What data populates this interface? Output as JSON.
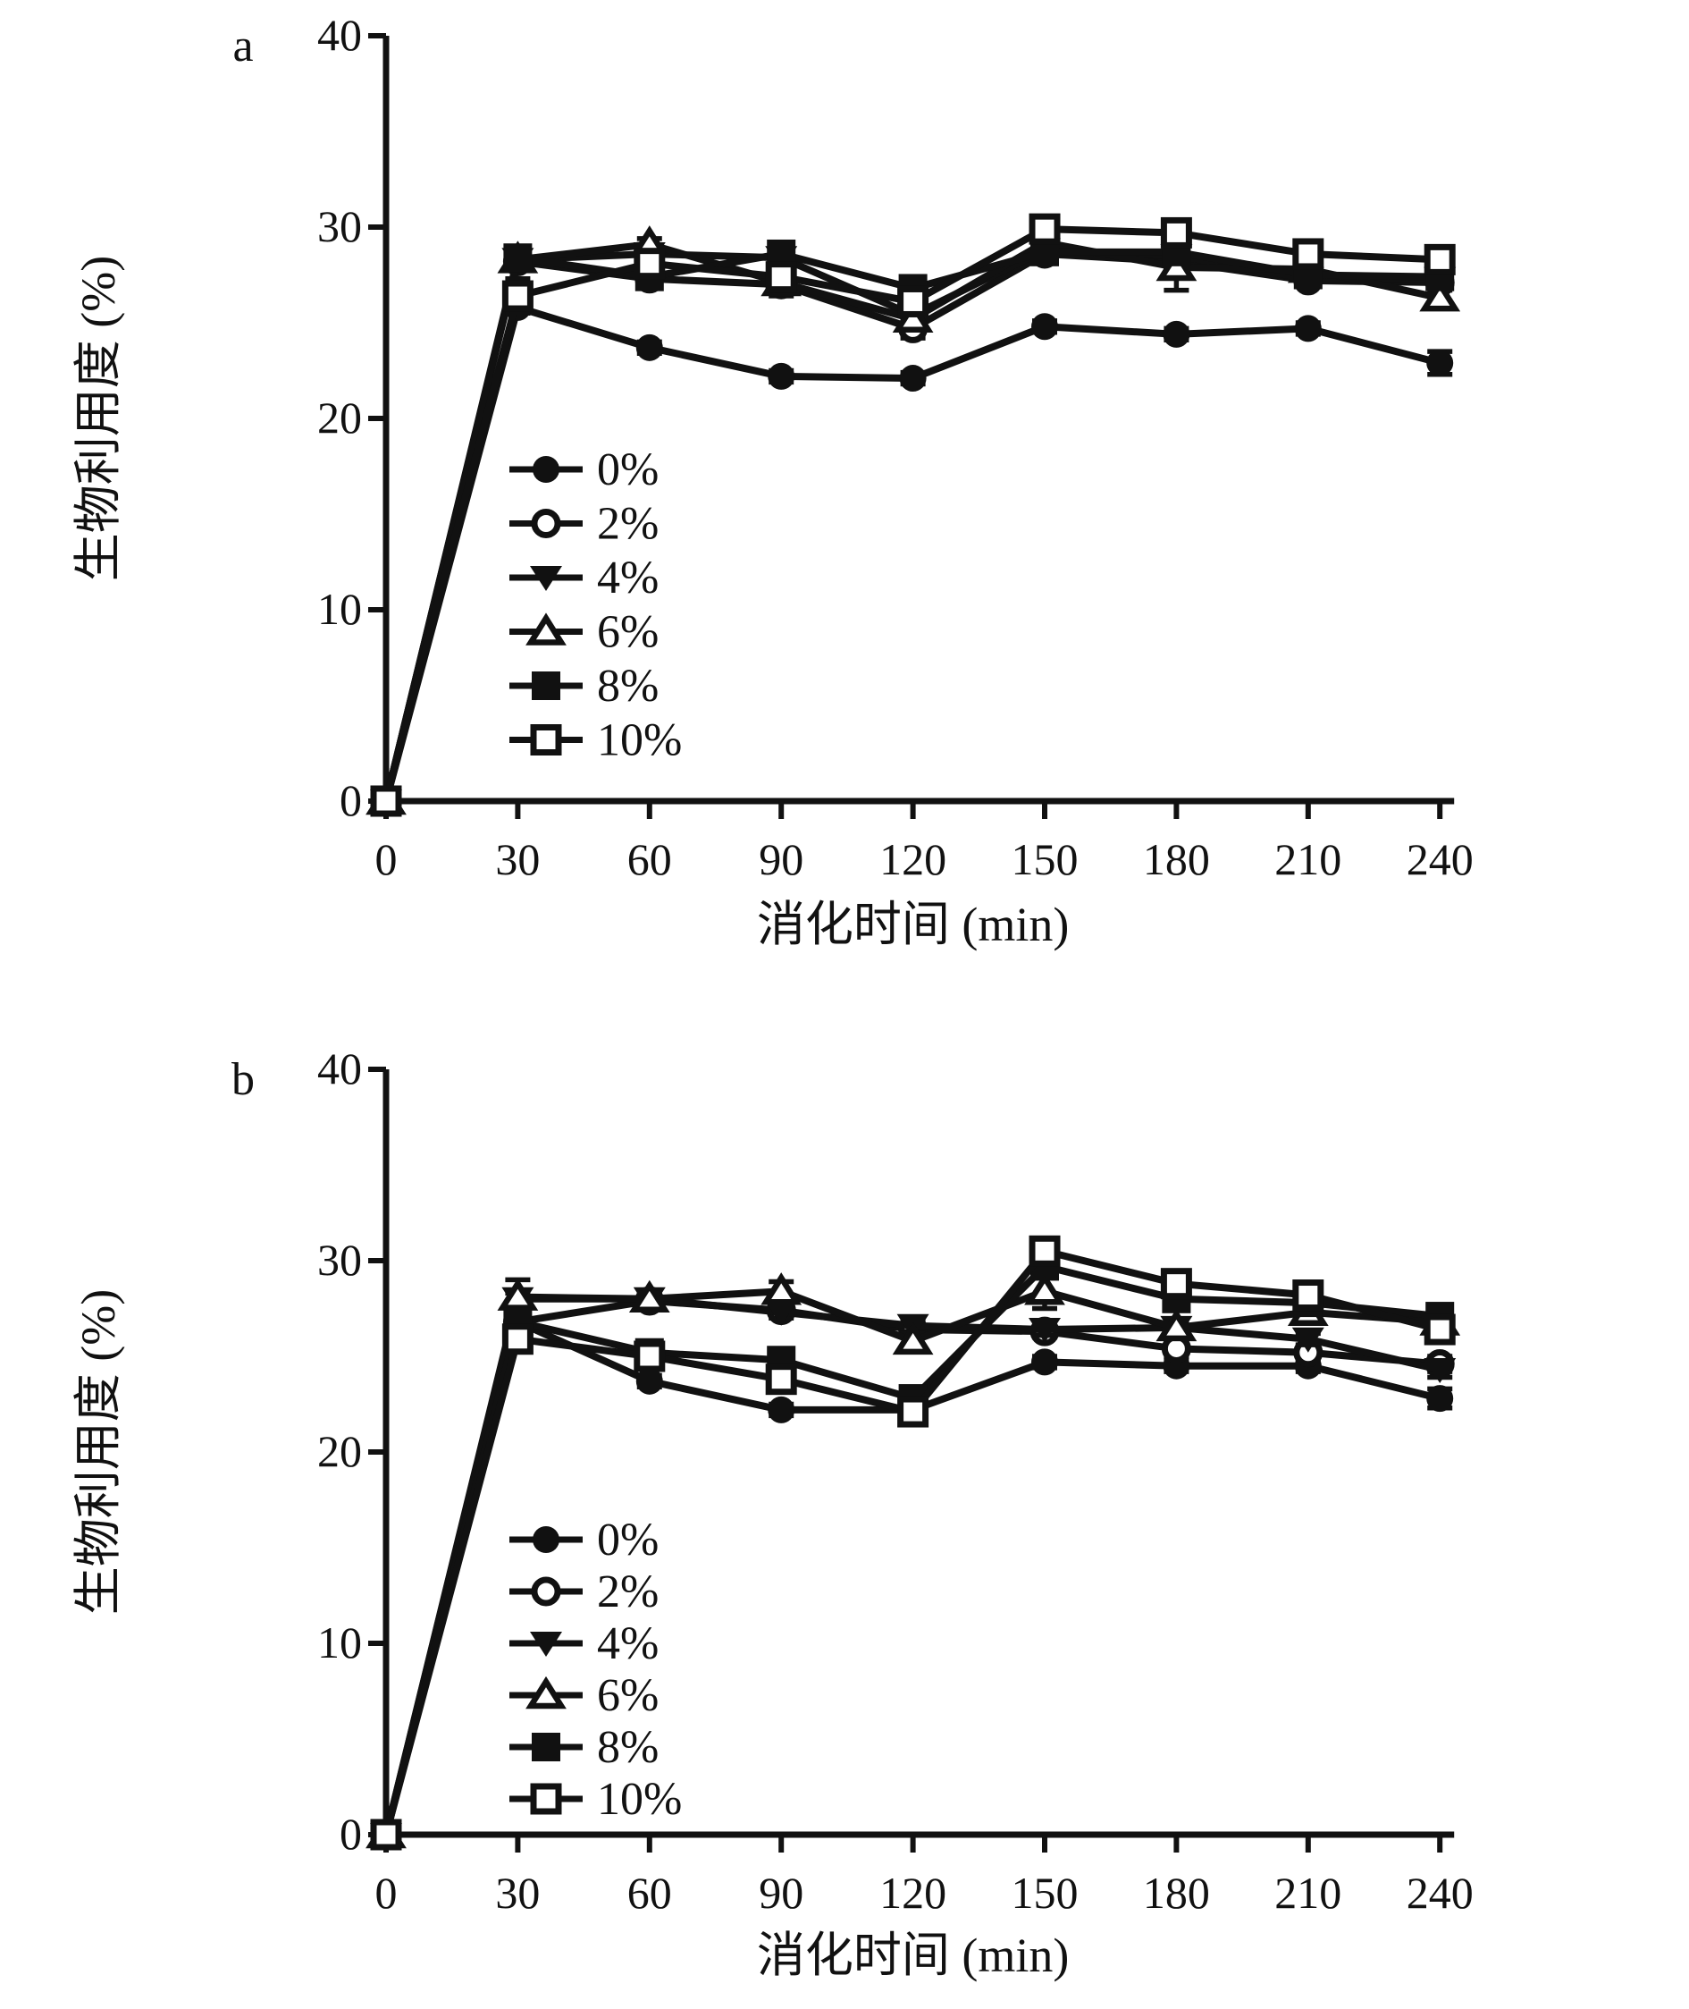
{
  "figure": {
    "background": "#ffffff",
    "ink": "#111111",
    "x_axis_title": "消化时间 (min)",
    "y_axis_title": "生物利用度 (%)",
    "y_tick_labels": [
      "0",
      "10",
      "20",
      "30",
      "40"
    ],
    "x_tick_labels": [
      "0",
      "30",
      "60",
      "90",
      "120",
      "150",
      "180",
      "210",
      "240"
    ],
    "legend_labels": [
      "0%",
      "2%",
      "4%",
      "6%",
      "8%",
      "10%"
    ]
  },
  "chart_data": [
    {
      "type": "line",
      "panel_label": "a",
      "title": "",
      "xlabel": "消化时间 (min)",
      "ylabel": "生物利用度 (%)",
      "xlim": [
        0,
        240
      ],
      "ylim": [
        0,
        40
      ],
      "x_ticks": [
        0,
        30,
        60,
        90,
        120,
        150,
        180,
        210,
        240
      ],
      "y_ticks": [
        0,
        10,
        20,
        30,
        40
      ],
      "grid": false,
      "legend_position": "inside-lower-left",
      "x": [
        0,
        30,
        60,
        90,
        120,
        150,
        180,
        210,
        240
      ],
      "series": [
        {
          "name": "0%",
          "marker": "filled-circle",
          "values": [
            0,
            25.8,
            23.7,
            22.2,
            22.1,
            24.8,
            24.4,
            24.7,
            22.9
          ],
          "errors": [
            0,
            0.3,
            0.3,
            0.3,
            0.3,
            0.3,
            0.3,
            0.3,
            0.6
          ]
        },
        {
          "name": "2%",
          "marker": "open-circle",
          "values": [
            0,
            28.2,
            27.3,
            27.0,
            24.7,
            28.6,
            28.2,
            27.2,
            27.1
          ],
          "errors": [
            0,
            0.3,
            0.4,
            0.6,
            0.5,
            0.3,
            0.3,
            0.3,
            0.4
          ]
        },
        {
          "name": "4%",
          "marker": "filled-triangle-down",
          "values": [
            0,
            28.3,
            28.6,
            28.4,
            25.4,
            28.8,
            28.5,
            27.3,
            27.3
          ],
          "errors": [
            0,
            0.3,
            0.3,
            0.3,
            0.4,
            0.3,
            0.3,
            0.3,
            0.4
          ]
        },
        {
          "name": "6%",
          "marker": "open-triangle-up",
          "values": [
            0,
            28.3,
            29.1,
            27.1,
            25.2,
            29.2,
            27.9,
            27.8,
            26.3
          ],
          "errors": [
            0,
            0.4,
            0.3,
            0.3,
            0.5,
            0.3,
            1.2,
            0.3,
            0.5
          ]
        },
        {
          "name": "8%",
          "marker": "filled-square",
          "values": [
            0,
            28.4,
            27.4,
            28.6,
            26.8,
            28.7,
            28.7,
            27.5,
            27.4
          ],
          "errors": [
            0,
            0.4,
            0.3,
            0.3,
            0.3,
            0.3,
            0.6,
            0.3,
            0.4
          ]
        },
        {
          "name": "10%",
          "marker": "open-square",
          "values": [
            0,
            26.4,
            28.1,
            27.4,
            26.1,
            29.9,
            29.7,
            28.6,
            28.3
          ],
          "errors": [
            0,
            0.9,
            0.3,
            0.3,
            0.3,
            0.4,
            0.4,
            0.3,
            0.5
          ]
        }
      ]
    },
    {
      "type": "line",
      "panel_label": "b",
      "title": "",
      "xlabel": "消化时间 (min)",
      "ylabel": "生物利用度 (%)",
      "xlim": [
        0,
        240
      ],
      "ylim": [
        0,
        40
      ],
      "x_ticks": [
        0,
        30,
        60,
        90,
        120,
        150,
        180,
        210,
        240
      ],
      "y_ticks": [
        0,
        10,
        20,
        30,
        40
      ],
      "grid": false,
      "legend_position": "inside-lower-left",
      "x": [
        0,
        30,
        60,
        90,
        120,
        150,
        180,
        210,
        240
      ],
      "series": [
        {
          "name": "0%",
          "marker": "filled-circle",
          "values": [
            0,
            26.8,
            23.7,
            22.2,
            22.2,
            24.7,
            24.5,
            24.5,
            22.8
          ],
          "errors": [
            0,
            0.3,
            0.3,
            0.3,
            0.3,
            0.3,
            0.3,
            0.3,
            0.5
          ]
        },
        {
          "name": "2%",
          "marker": "open-circle",
          "values": [
            0,
            26.8,
            27.9,
            27.4,
            26.4,
            26.3,
            25.4,
            25.2,
            24.6
          ],
          "errors": [
            0,
            0.3,
            0.3,
            0.3,
            0.3,
            0.3,
            0.4,
            0.3,
            0.4
          ]
        },
        {
          "name": "4%",
          "marker": "filled-triangle-down",
          "values": [
            0,
            28.0,
            28.0,
            27.3,
            26.6,
            26.4,
            26.5,
            25.9,
            24.3
          ],
          "errors": [
            0,
            0.3,
            0.3,
            0.3,
            0.3,
            0.3,
            0.3,
            0.3,
            0.4
          ]
        },
        {
          "name": "6%",
          "marker": "open-triangle-up",
          "values": [
            0,
            28.1,
            28.0,
            28.4,
            25.8,
            28.4,
            26.5,
            27.3,
            26.8
          ],
          "errors": [
            0,
            0.9,
            0.3,
            0.5,
            0.4,
            0.9,
            0.3,
            0.3,
            0.4
          ]
        },
        {
          "name": "8%",
          "marker": "filled-square",
          "values": [
            0,
            26.8,
            25.2,
            24.8,
            22.8,
            29.7,
            28.0,
            27.8,
            27.1
          ],
          "errors": [
            0,
            0.4,
            0.3,
            0.3,
            0.5,
            0.4,
            0.5,
            0.3,
            0.5
          ]
        },
        {
          "name": "10%",
          "marker": "open-square",
          "values": [
            0,
            25.9,
            25.0,
            23.8,
            22.1,
            30.5,
            28.8,
            28.2,
            26.4
          ],
          "errors": [
            0,
            0.4,
            0.3,
            0.3,
            0.4,
            0.3,
            0.6,
            0.3,
            0.4
          ]
        }
      ]
    }
  ]
}
